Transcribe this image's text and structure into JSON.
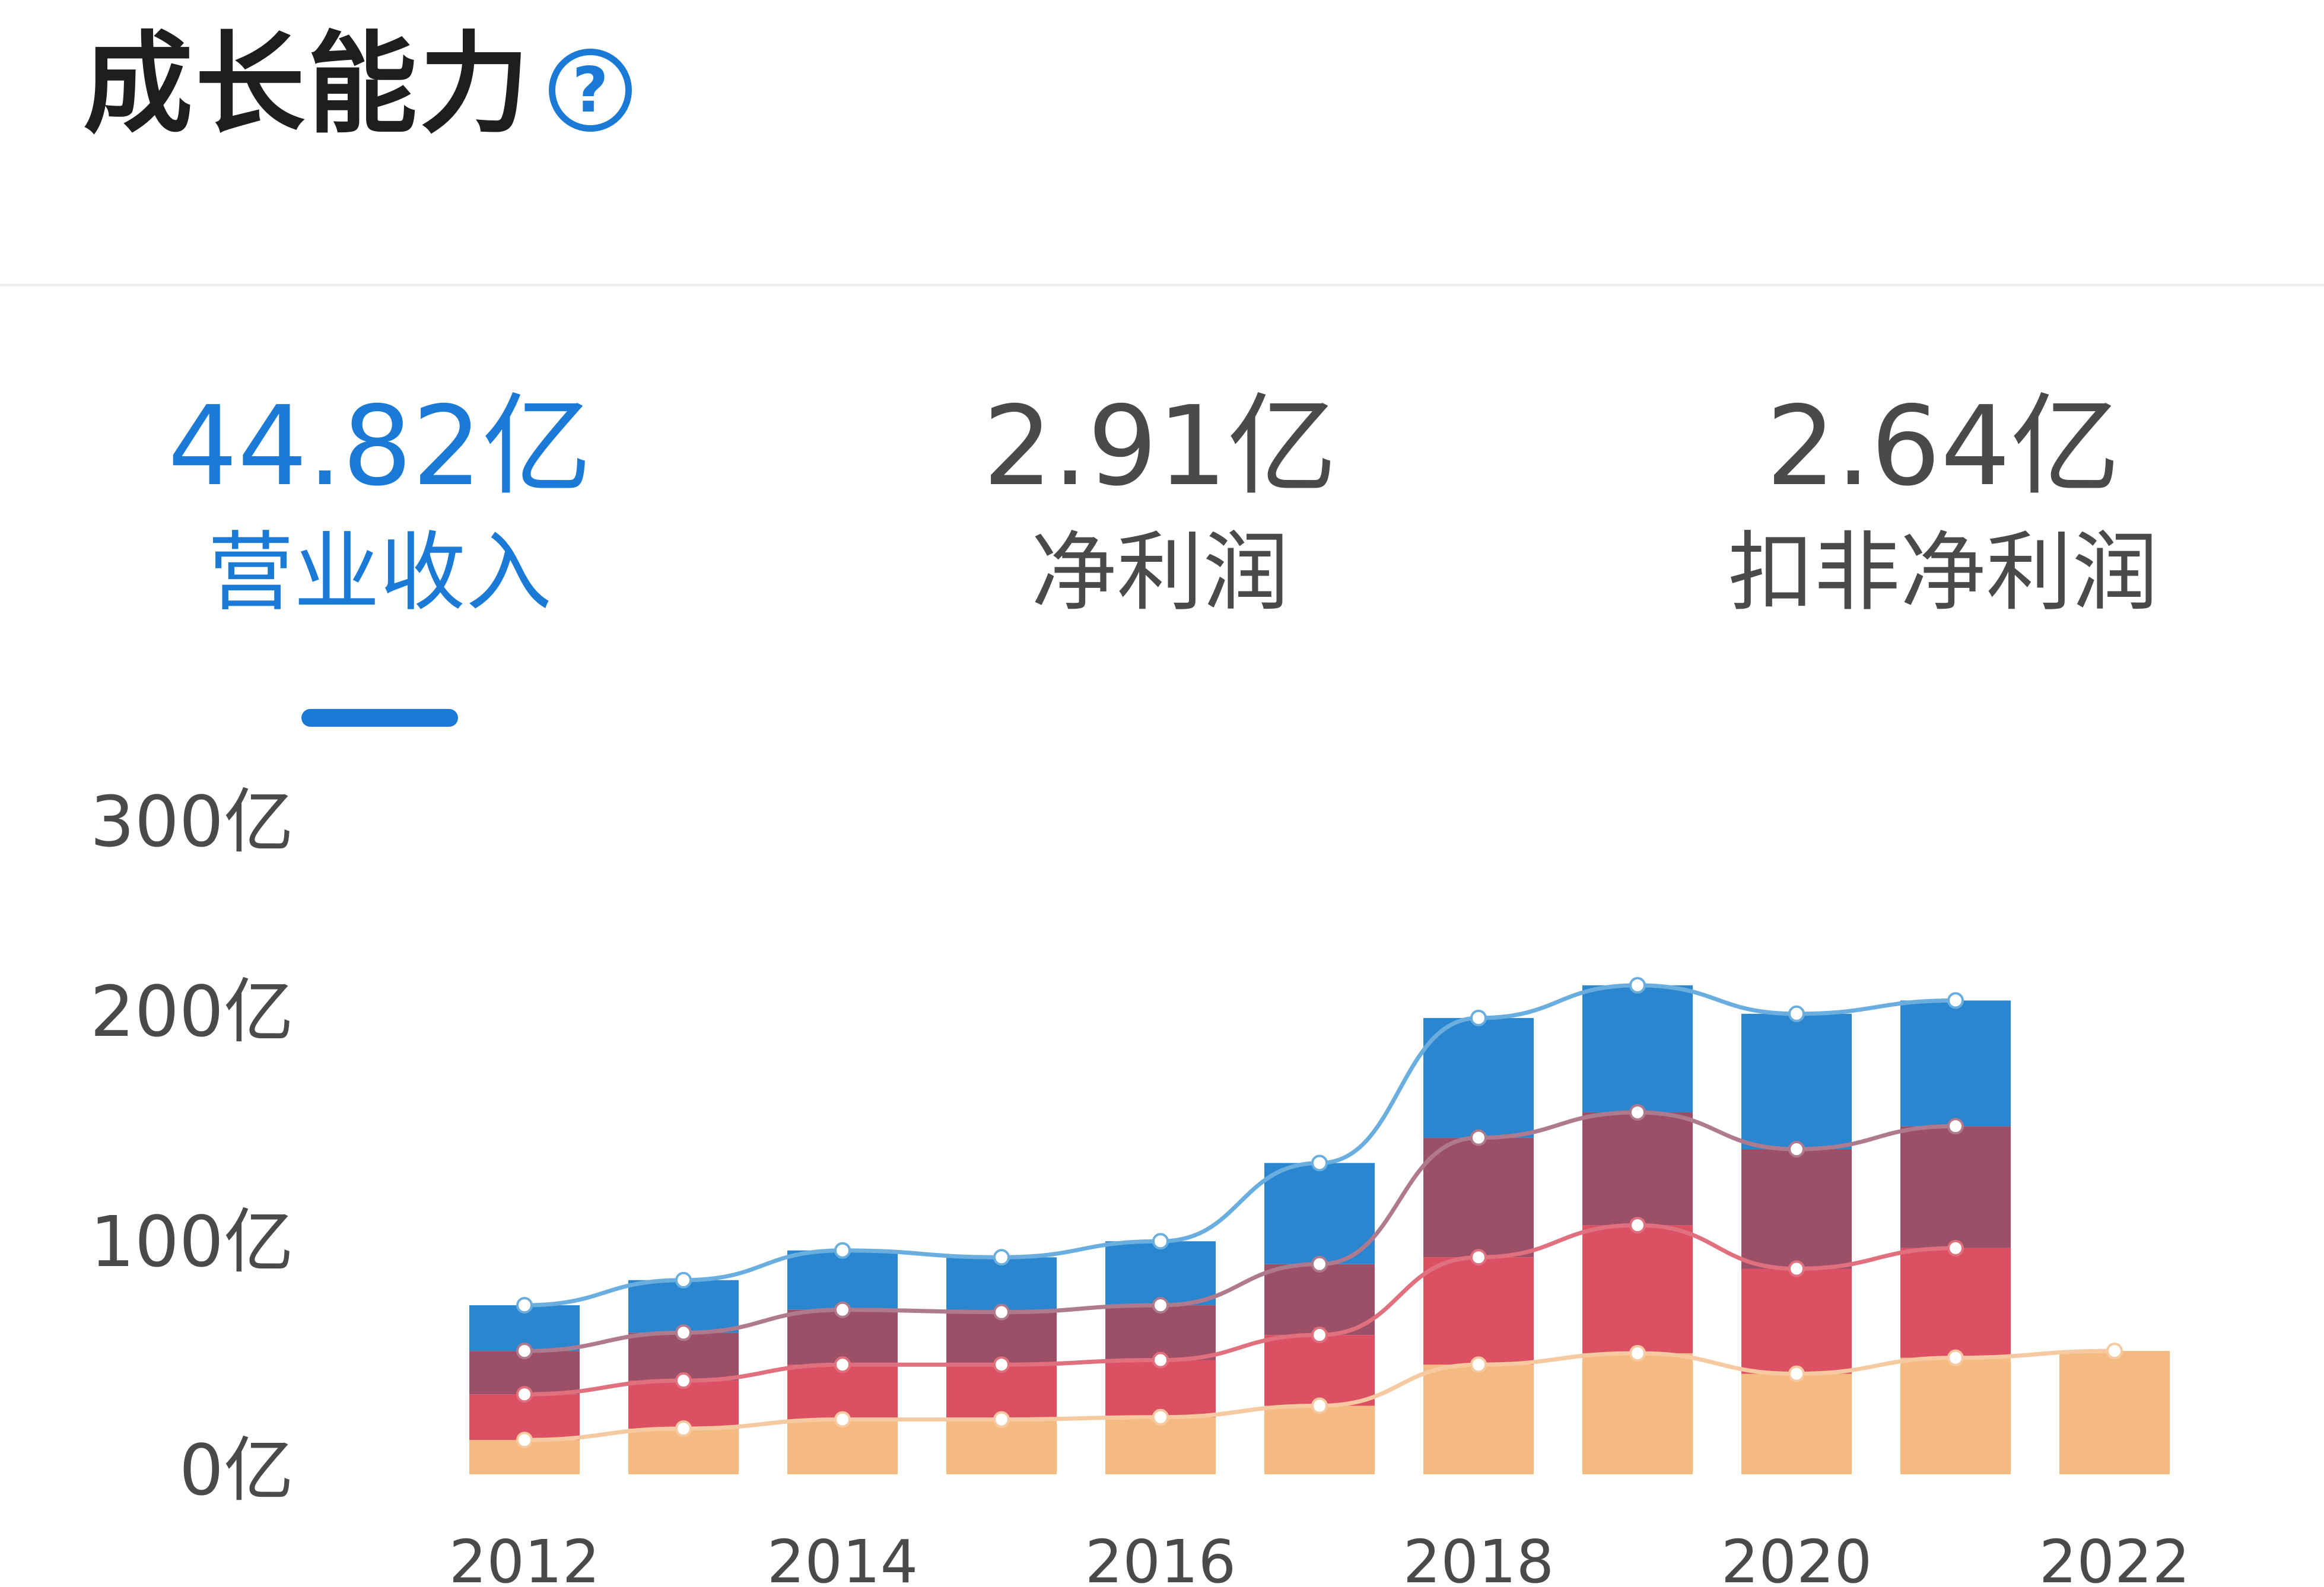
{
  "header": {
    "title": "成长能力",
    "help_icon": "question-circle-icon"
  },
  "metrics": [
    {
      "value": "44.82亿",
      "label": "营业收入",
      "active": true
    },
    {
      "value": "2.91亿",
      "label": "净利润",
      "active": false
    },
    {
      "value": "2.64亿",
      "label": "扣非净利润",
      "active": false
    }
  ],
  "chart_data": {
    "type": "bar",
    "stacked": true,
    "y_ticks": [
      "300亿",
      "200亿",
      "100亿",
      "0亿"
    ],
    "x_tick_labels": [
      "2012",
      "2014",
      "2016",
      "2018",
      "2020",
      "2022"
    ],
    "categories": [
      "2012",
      "2013",
      "2014",
      "2015",
      "2016",
      "2017",
      "2018",
      "2019",
      "2020",
      "2021",
      "2022"
    ],
    "ylim": [
      0,
      300
    ],
    "colors": [
      "#f5b982",
      "#dc5064",
      "#9c5068",
      "#2b86d0"
    ],
    "line_colors": [
      "#f7c9a0",
      "#e0707e",
      "#b07a8e",
      "#6aaee0"
    ],
    "series": [
      {
        "values": [
          15,
          20,
          24,
          24,
          25,
          30,
          48,
          53,
          44,
          51,
          54
        ]
      },
      {
        "values": [
          20,
          21,
          24,
          24,
          25,
          31,
          47,
          56,
          46,
          48,
          null
        ]
      },
      {
        "values": [
          19,
          21,
          24,
          23,
          24,
          31,
          52,
          49,
          52,
          53,
          null
        ]
      },
      {
        "values": [
          20,
          23,
          26,
          24,
          28,
          44,
          52,
          58,
          59,
          56,
          null
        ]
      }
    ]
  }
}
